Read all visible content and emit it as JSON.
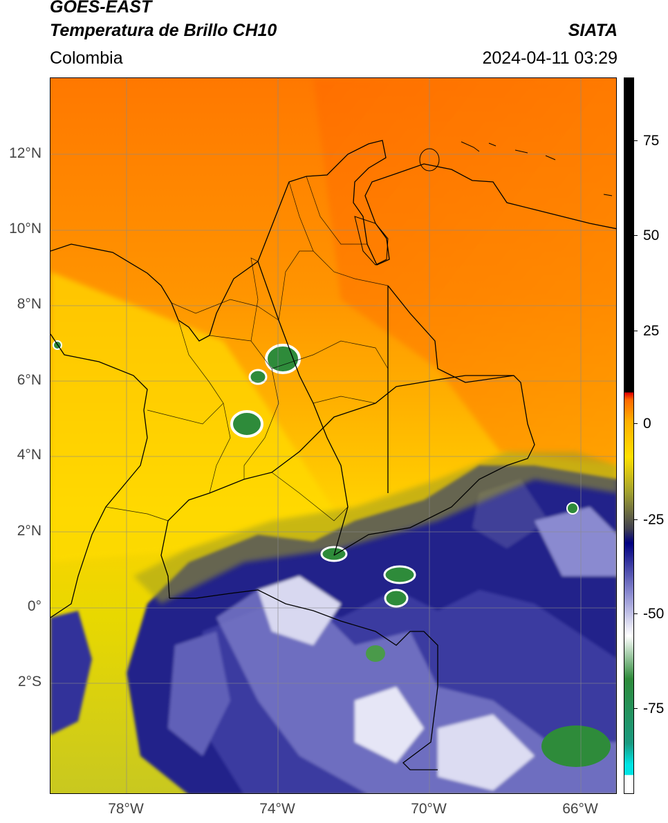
{
  "header": {
    "title_line1": "GOES-EAST",
    "title_line2": "Temperatura de Brillo CH10",
    "agency": "SIATA",
    "region": "Colombia",
    "datetime": "2024-04-11 03:29"
  },
  "map": {
    "lat_ticks": [
      "12°N",
      "10°N",
      "8°N",
      "6°N",
      "4°N",
      "2°N",
      "0°",
      "2°S"
    ],
    "lon_ticks": [
      "78°W",
      "74°W",
      "70°W",
      "66°W"
    ],
    "grid": true
  },
  "colorbar": {
    "ticks": [
      "75",
      "50",
      "25",
      "0",
      "-25",
      "-50",
      "-75"
    ],
    "range": [
      -95,
      90
    ],
    "colors": [
      "#ffffff",
      "#00e5e5",
      "#1a9a80",
      "#2e8b3a",
      "#ffffff",
      "#8a8ad0",
      "#000080",
      "#707030",
      "#c8c800",
      "#ffe000",
      "#ff9c00",
      "#ff5a00",
      "#e00000",
      "#000000"
    ]
  }
}
